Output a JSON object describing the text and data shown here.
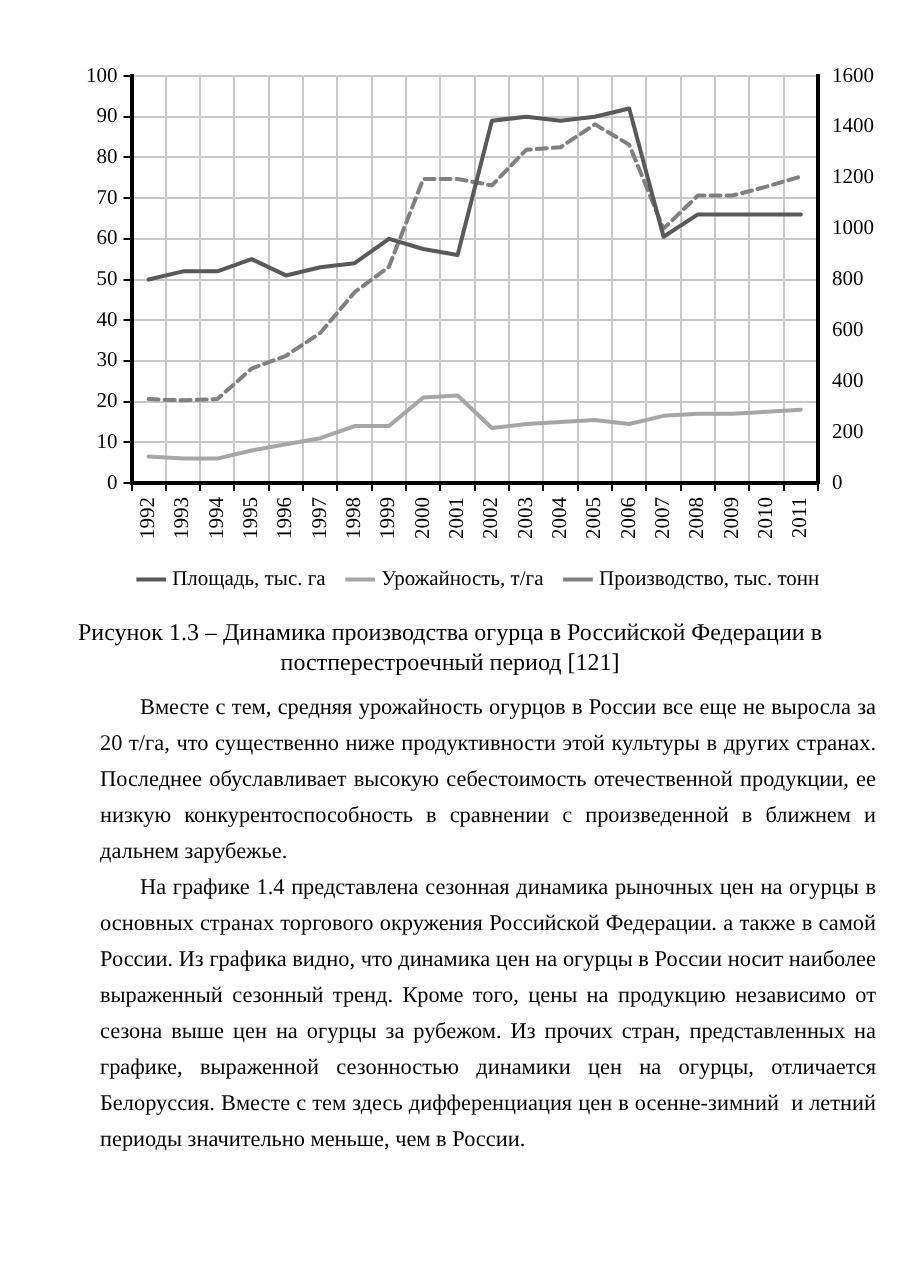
{
  "chart_data": {
    "type": "line",
    "title": "Рисунок 1.3 – Динамика производства огурца в Российской Федерации в постперестроечный период [121]",
    "categories": [
      "1992",
      "1993",
      "1994",
      "1995",
      "1996",
      "1997",
      "1998",
      "1999",
      "2000",
      "2001",
      "2002",
      "2003",
      "2004",
      "2005",
      "2006",
      "2007",
      "2008",
      "2009",
      "2010",
      "2011"
    ],
    "series": [
      {
        "name": "Площадь, тыс. га",
        "color": "#595959",
        "line_style": "solid",
        "values": [
          50,
          52,
          52,
          55,
          51,
          53,
          54,
          60,
          57.5,
          56,
          89,
          90,
          89,
          90,
          92,
          60.5,
          66,
          66,
          66,
          66
        ]
      },
      {
        "name": "Урожайность, т/га",
        "color": "#a6a6a6",
        "line_style": "solid",
        "values": [
          6.5,
          6,
          6,
          8,
          9.5,
          11,
          14,
          14,
          21,
          21.5,
          13.5,
          14.5,
          15,
          15.5,
          14.5,
          16.5,
          17,
          17,
          17.5,
          18
        ]
      },
      {
        "name": "Производство, тыс. тонн",
        "color": "#808080",
        "line_style": "dashed",
        "axis": "y2",
        "values": [
          330,
          325,
          330,
          450,
          500,
          590,
          750,
          850,
          1195,
          1195,
          1170,
          1310,
          1320,
          1410,
          1330,
          1000,
          1130,
          1130,
          1165,
          1205
        ]
      }
    ],
    "ylim": [
      0,
      100
    ],
    "yticks": [
      0,
      10,
      20,
      30,
      40,
      50,
      60,
      70,
      80,
      90,
      100
    ],
    "y2lim": [
      0,
      1600
    ],
    "y2ticks": [
      0,
      200,
      400,
      600,
      800,
      1000,
      1200,
      1400,
      1600
    ],
    "grid": true,
    "legend": "bottom",
    "marker": "none",
    "annotations": [
      "Вместе с тем, средняя урожайность огурцов в России все еще не выросла за 20 т/га, что существенно ниже продуктивности этой культуры в других странах. Последнее обуславливает высокую себестоимость отечественной продукции, ее низкую конкурентоспособность в сравнении с произведенной в ближнем и дальнем зарубежье.",
      "На графике 1.4 представлена сезонная динамика рыночных цен на огурцы в основных странах торгового окружения Российской Федерации. а также в самой России. Из графика видно, что динамика цен на огурцы в России носит наиболее выраженный сезонный тренд. Кроме того, цены на продукцию независимо от сезона выше цен на огурцы за рубежом. Из прочих стран, представленных на графике, выраженной сезонностью динамики цен на огурцы, отличается Белоруссия. Вместе с тем здесь дифференциация цен в осенне-зимний  и летний периоды значительно меньше, чем в России."
    ]
  }
}
